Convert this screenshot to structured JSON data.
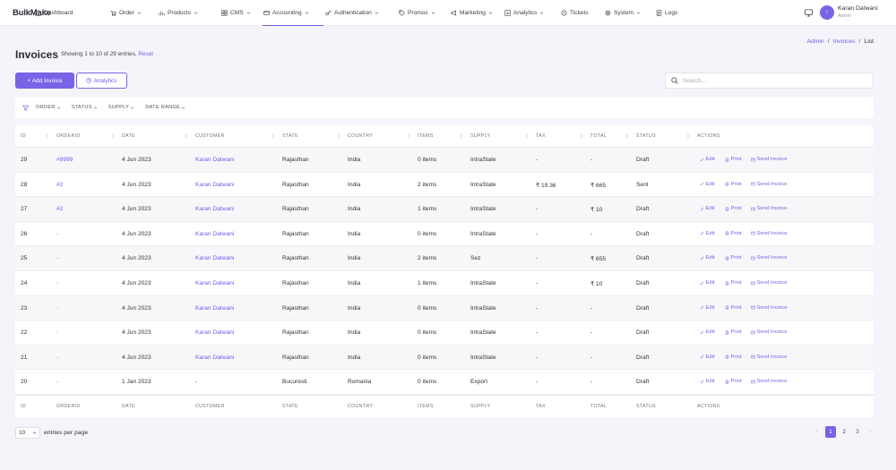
{
  "brand": "BulkMake",
  "nav": [
    {
      "label": "Dashboard",
      "icon": "home-icon",
      "chev": false
    },
    {
      "label": "Order",
      "icon": "cart-icon",
      "chev": true
    },
    {
      "label": "Products",
      "icon": "chart-bar-icon",
      "chev": true
    },
    {
      "label": "CMS",
      "icon": "grid-icon",
      "chev": true
    },
    {
      "label": "Accounting",
      "icon": "card-icon",
      "chev": true
    },
    {
      "label": "Authentication",
      "icon": "key-icon",
      "chev": true
    },
    {
      "label": "Promos",
      "icon": "tag-icon",
      "chev": true
    },
    {
      "label": "Marketing",
      "icon": "megaphone-icon",
      "chev": true
    },
    {
      "label": "Analytics",
      "icon": "analytics-icon",
      "chev": true
    },
    {
      "label": "Tickets",
      "icon": "ticket-icon",
      "chev": false
    },
    {
      "label": "System",
      "icon": "gear-icon",
      "chev": true
    },
    {
      "label": "Logs",
      "icon": "log-icon",
      "chev": false
    }
  ],
  "active_nav": "Accounting",
  "user": {
    "name": "Karan Datwani",
    "role": "Admin",
    "initial": "I"
  },
  "page": {
    "title": "Invoices",
    "showing": "Showing 1 to 10 of 29 entries.",
    "reset": "Reset",
    "breadcrumb": [
      "Admin",
      "Invoices",
      "List"
    ],
    "add_button": "+ Add Invoice",
    "analytics_button": "Analytics",
    "search_placeholder": "Search..."
  },
  "filters": [
    "ORDER",
    "STATUS",
    "SUPPLY",
    "DATE RANGE"
  ],
  "columns": [
    "ID",
    "ORDERID",
    "DATE",
    "CUSTOMER",
    "STATE",
    "COUNTRY",
    "ITEMS",
    "SUPPLY",
    "TAX",
    "TOTAL",
    "STATUS",
    "ACTIONS"
  ],
  "rows": [
    {
      "id": "29",
      "orderid": "#9999",
      "date": "4 Jun 2023",
      "customer": "Karan Datwani",
      "state": "Rajasthan",
      "country": "India",
      "items": "0 items",
      "supply": "IntraState",
      "tax": "-",
      "total": "-",
      "status": "Draft"
    },
    {
      "id": "28",
      "orderid": "#2",
      "date": "4 Jun 2023",
      "customer": "Karan Datwani",
      "state": "Rajasthan",
      "country": "India",
      "items": "2 items",
      "supply": "IntraState",
      "tax": "₹ 19.36",
      "total": "₹ 665",
      "status": "Sent"
    },
    {
      "id": "27",
      "orderid": "#2",
      "date": "4 Jun 2023",
      "customer": "Karan Datwani",
      "state": "Rajasthan",
      "country": "India",
      "items": "1 items",
      "supply": "IntraState",
      "tax": "-",
      "total": "₹ 10",
      "status": "Draft"
    },
    {
      "id": "26",
      "orderid": "-",
      "date": "4 Jun 2023",
      "customer": "Karan Datwani",
      "state": "Rajasthan",
      "country": "India",
      "items": "0 items",
      "supply": "IntraState",
      "tax": "-",
      "total": "-",
      "status": "Draft"
    },
    {
      "id": "25",
      "orderid": "-",
      "date": "4 Jun 2023",
      "customer": "Karan Datwani",
      "state": "Rajasthan",
      "country": "India",
      "items": "2 items",
      "supply": "Sez",
      "tax": "-",
      "total": "₹ 655",
      "status": "Draft"
    },
    {
      "id": "24",
      "orderid": "-",
      "date": "4 Jun 2023",
      "customer": "Karan Datwani",
      "state": "Rajasthan",
      "country": "India",
      "items": "1 items",
      "supply": "IntraState",
      "tax": "-",
      "total": "₹ 10",
      "status": "Draft"
    },
    {
      "id": "23",
      "orderid": "-",
      "date": "4 Jun 2023",
      "customer": "Karan Datwani",
      "state": "Rajasthan",
      "country": "India",
      "items": "0 items",
      "supply": "IntraState",
      "tax": "-",
      "total": "-",
      "status": "Draft"
    },
    {
      "id": "22",
      "orderid": "-",
      "date": "4 Jun 2023",
      "customer": "Karan Datwani",
      "state": "Rajasthan",
      "country": "India",
      "items": "0 items",
      "supply": "IntraState",
      "tax": "-",
      "total": "-",
      "status": "Draft"
    },
    {
      "id": "21",
      "orderid": "-",
      "date": "4 Jun 2023",
      "customer": "Karan Datwani",
      "state": "Rajasthan",
      "country": "India",
      "items": "0 items",
      "supply": "IntraState",
      "tax": "-",
      "total": "-",
      "status": "Draft"
    },
    {
      "id": "20",
      "orderid": "-",
      "date": "1 Jan 2023",
      "customer": "-",
      "state": "Bucuresti",
      "country": "Romania",
      "items": "0 items",
      "supply": "Export",
      "tax": "-",
      "total": "-",
      "status": "Draft"
    }
  ],
  "actions": [
    "Edit",
    "Print",
    "Send Invoice"
  ],
  "pagination": {
    "per_page": "10",
    "per_page_label": "entries per page",
    "pages": [
      "1",
      "2",
      "3"
    ],
    "current": "1",
    "prev": "‹",
    "next": "›"
  },
  "colors": {
    "accent": "#7a63e6",
    "link": "#6d5ce8",
    "background": "#f4f5fa"
  }
}
